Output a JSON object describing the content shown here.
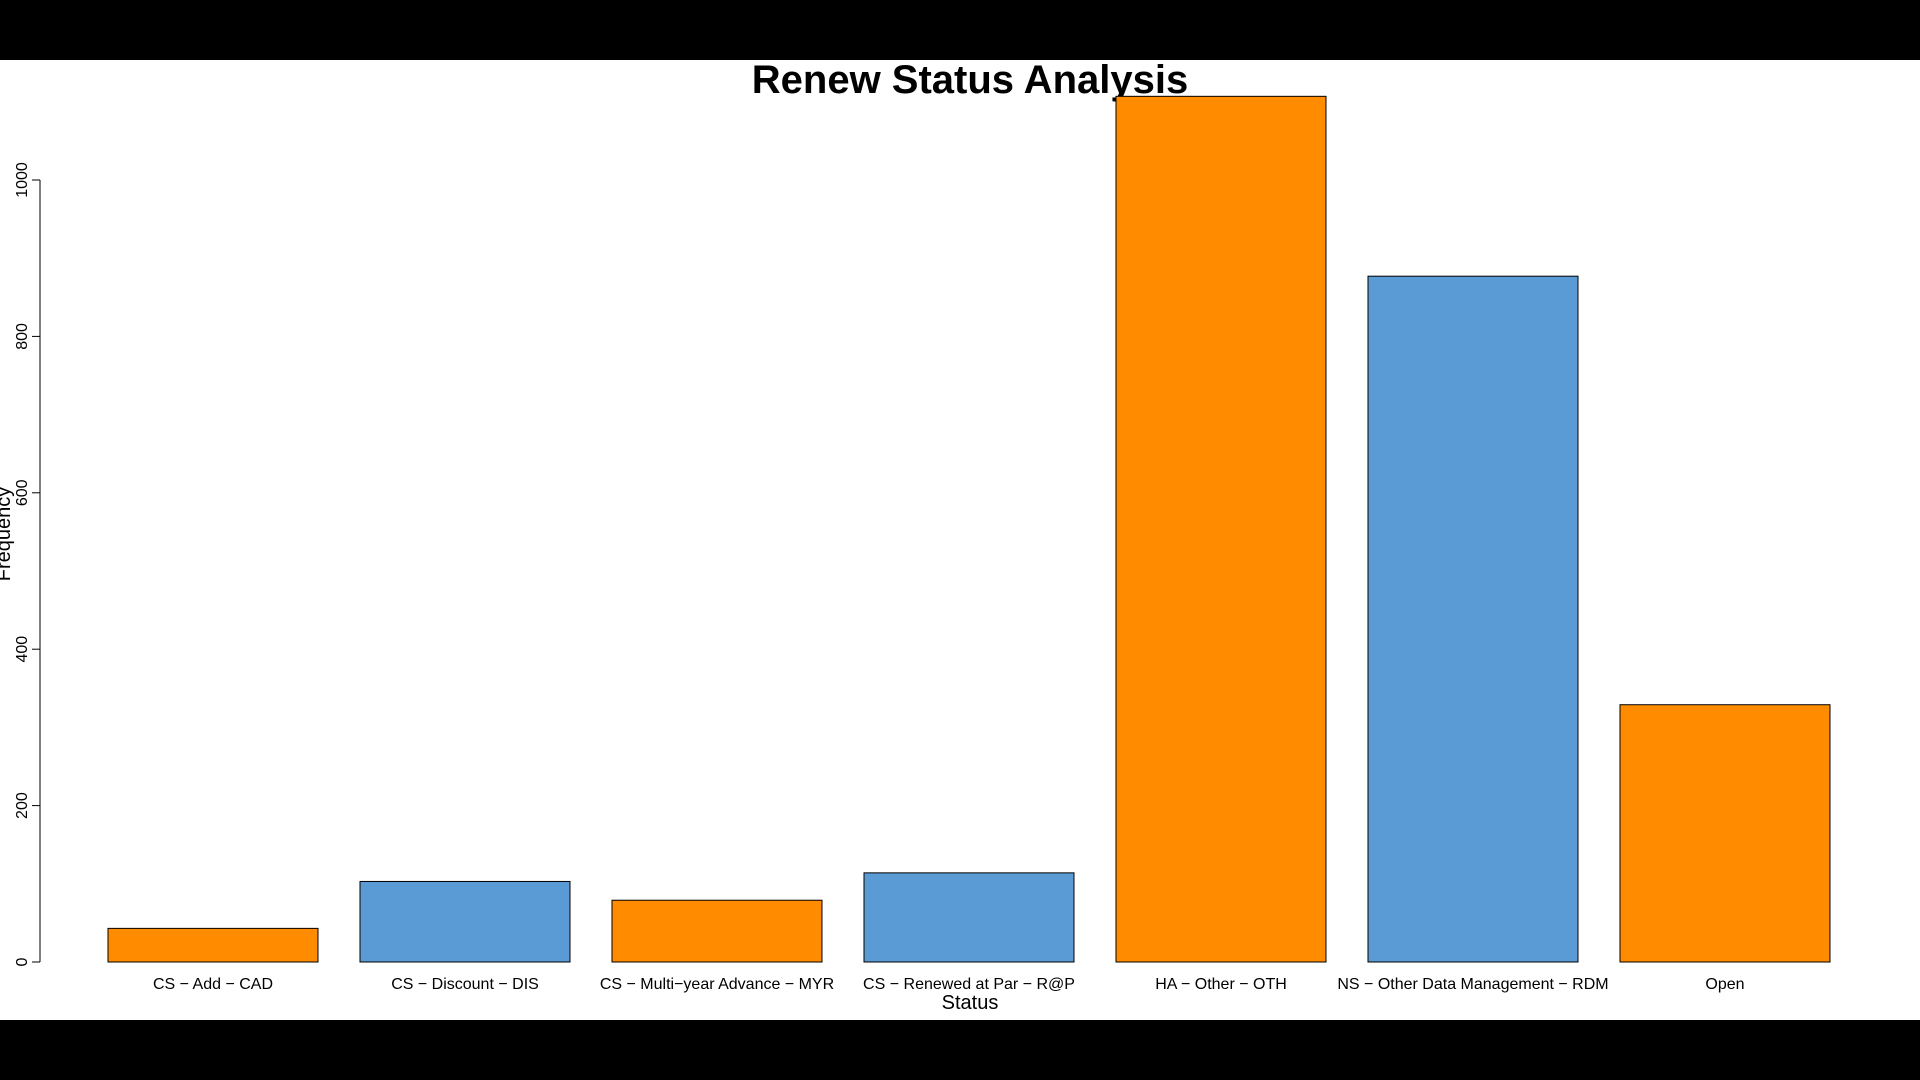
{
  "chart_data": {
    "type": "bar",
    "title": "Renew Status Analysis",
    "xlabel": "Status",
    "ylabel": "Frequency",
    "categories": [
      "CS − Add − CAD",
      "CS − Discount − DIS",
      "CS − Multi−year Advance − MYR",
      "CS − Renewed at Par − R@P",
      "HA − Other − OTH",
      "NS − Other Data Management − RDM",
      "Open"
    ],
    "values": [
      43,
      103,
      79,
      114,
      1107,
      877,
      329
    ],
    "ylim": [
      0,
      1100
    ],
    "yticks": [
      0,
      200,
      400,
      600,
      800,
      1000
    ],
    "colors": [
      "#FF8C00",
      "#5B9BD5",
      "#FF8C00",
      "#5B9BD5",
      "#FF8C00",
      "#5B9BD5",
      "#FF8C00"
    ],
    "grid": false,
    "legend": "none"
  }
}
